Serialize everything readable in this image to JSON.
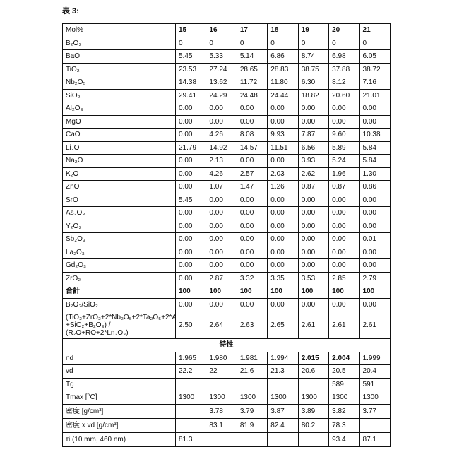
{
  "title": "表 3:",
  "header": {
    "label": "Mol%",
    "columns": [
      "15",
      "16",
      "17",
      "18",
      "19",
      "20",
      "21"
    ]
  },
  "composition_rows": [
    {
      "label": "B₂O₃",
      "values": [
        "0",
        "0",
        "0",
        "0",
        "0",
        "0",
        "0"
      ]
    },
    {
      "label": "BaO",
      "values": [
        "5.45",
        "5.33",
        "5.14",
        "6.86",
        "8.74",
        "6.98",
        "6.05"
      ]
    },
    {
      "label": "TiO₂",
      "values": [
        "23.53",
        "27.24",
        "28.65",
        "28.83",
        "38.75",
        "37.88",
        "38.72"
      ]
    },
    {
      "label": "Nb₂O₅",
      "values": [
        "14.38",
        "13.62",
        "11.72",
        "11.80",
        "6.30",
        "8.12",
        "7.16"
      ]
    },
    {
      "label": "SiO₂",
      "values": [
        "29.41",
        "24.29",
        "24.48",
        "24.44",
        "18.82",
        "20.60",
        "21.01"
      ]
    },
    {
      "label": "Al₂O₃",
      "values": [
        "0.00",
        "0.00",
        "0.00",
        "0.00",
        "0.00",
        "0.00",
        "0.00"
      ]
    },
    {
      "label": "MgO",
      "values": [
        "0.00",
        "0.00",
        "0.00",
        "0.00",
        "0.00",
        "0.00",
        "0.00"
      ]
    },
    {
      "label": "CaO",
      "values": [
        "0.00",
        "4.26",
        "8.08",
        "9.93",
        "7.87",
        "9.60",
        "10.38"
      ]
    },
    {
      "label": "Li₂O",
      "values": [
        "21.79",
        "14.92",
        "14.57",
        "11.51",
        "6.56",
        "5.89",
        "5.84"
      ]
    },
    {
      "label": "Na₂O",
      "values": [
        "0.00",
        "2.13",
        "0.00",
        "0.00",
        "3.93",
        "5.24",
        "5.84"
      ]
    },
    {
      "label": "K₂O",
      "values": [
        "0.00",
        "4.26",
        "2.57",
        "2.03",
        "2.62",
        "1.96",
        "1.30"
      ]
    },
    {
      "label": "ZnO",
      "values": [
        "0.00",
        "1.07",
        "1.47",
        "1.26",
        "0.87",
        "0.87",
        "0.86"
      ]
    },
    {
      "label": "SrO",
      "values": [
        "5.45",
        "0.00",
        "0.00",
        "0.00",
        "0.00",
        "0.00",
        "0.00"
      ]
    },
    {
      "label": "As₂O₃",
      "values": [
        "0.00",
        "0.00",
        "0.00",
        "0.00",
        "0.00",
        "0.00",
        "0.00"
      ]
    },
    {
      "label": "Y₂O₃",
      "values": [
        "0.00",
        "0.00",
        "0.00",
        "0.00",
        "0.00",
        "0.00",
        "0.00"
      ]
    },
    {
      "label": "Sb₂O₃",
      "values": [
        "0.00",
        "0.00",
        "0.00",
        "0.00",
        "0.00",
        "0.00",
        "0.01"
      ]
    },
    {
      "label": "La₂O₃",
      "values": [
        "0.00",
        "0.00",
        "0.00",
        "0.00",
        "0.00",
        "0.00",
        "0.00"
      ]
    },
    {
      "label": "Gd₂O₃",
      "values": [
        "0.00",
        "0.00",
        "0.00",
        "0.00",
        "0.00",
        "0.00",
        "0.00"
      ]
    },
    {
      "label": "ZrO₂",
      "values": [
        "0.00",
        "2.87",
        "3.32",
        "3.35",
        "3.53",
        "2.85",
        "2.79"
      ]
    }
  ],
  "total_row": {
    "label": "合計",
    "values": [
      "100",
      "100",
      "100",
      "100",
      "100",
      "100",
      "100"
    ]
  },
  "ratio_rows": [
    {
      "label": "B₂O₃/SiO₂",
      "values": [
        "0.00",
        "0.00",
        "0.00",
        "0.00",
        "0.00",
        "0.00",
        "0.00"
      ]
    },
    {
      "label": "(TiO₂+ZrO₂+2*Nb₂O₅+2*Ta₂O₅+2*Al₂O₃ +SiO₂+B₂O₃) / (R₂O+RO+2*Ln₂O₃)",
      "values": [
        "2.50",
        "2.64",
        "2.63",
        "2.65",
        "2.61",
        "2.61",
        "2.61"
      ]
    }
  ],
  "section_label": "特性",
  "property_rows": [
    {
      "label": "nd",
      "values": [
        "1.965",
        "1.980",
        "1.981",
        "1.994",
        "2.015",
        "2.004",
        "1.999"
      ],
      "bold": [
        false,
        false,
        false,
        false,
        true,
        true,
        false
      ]
    },
    {
      "label": "vd",
      "values": [
        "22.2",
        "22",
        "21.6",
        "21.3",
        "20.6",
        "20.5",
        "20.4"
      ]
    },
    {
      "label": "Tg",
      "values": [
        "",
        "",
        "",
        "",
        "",
        "589",
        "591"
      ]
    },
    {
      "label": "Tmax [°C]",
      "values": [
        "1300",
        "1300",
        "1300",
        "1300",
        "1300",
        "1300",
        "1300"
      ]
    },
    {
      "label": "密度 [g/cm³]",
      "values": [
        "",
        "3.78",
        "3.79",
        "3.87",
        "3.89",
        "3.82",
        "3.77"
      ]
    },
    {
      "label": "密度 x vd [g/cm³]",
      "values": [
        "",
        "83.1",
        "81.9",
        "82.4",
        "80.2",
        "78.3",
        ""
      ]
    },
    {
      "label": "τi (10 mm, 460 nm)",
      "values": [
        "81.3",
        "",
        "",
        "",
        "",
        "93.4",
        "87.1"
      ]
    }
  ]
}
